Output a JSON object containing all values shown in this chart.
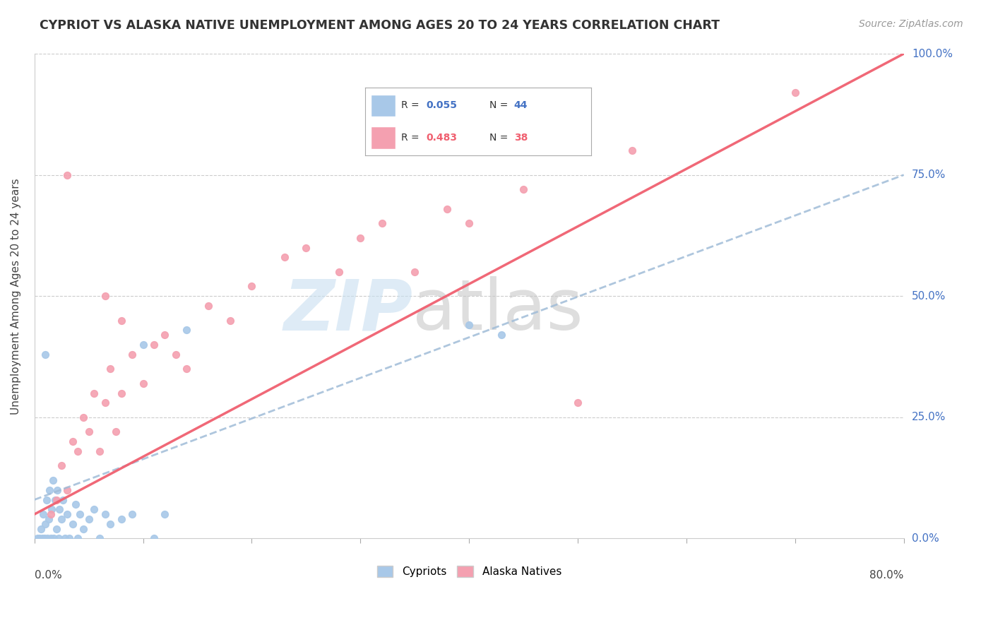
{
  "title": "CYPRIOT VS ALASKA NATIVE UNEMPLOYMENT AMONG AGES 20 TO 24 YEARS CORRELATION CHART",
  "source": "Source: ZipAtlas.com",
  "ylabel": "Unemployment Among Ages 20 to 24 years",
  "xlim": [
    0,
    80
  ],
  "ylim": [
    0,
    100
  ],
  "cypriot_color": "#a8c8e8",
  "alaska_color": "#f4a0b0",
  "cypriot_line_color": "#a0bcd8",
  "alaska_line_color": "#f06070",
  "watermark_zip_color": "#c8dff0",
  "watermark_atlas_color": "#c8c8c8",
  "cypriot_x": [
    0.3,
    0.5,
    0.6,
    0.7,
    0.8,
    0.9,
    1.0,
    1.1,
    1.2,
    1.3,
    1.4,
    1.5,
    1.6,
    1.7,
    1.8,
    1.9,
    2.0,
    2.1,
    2.2,
    2.3,
    2.5,
    2.6,
    2.8,
    3.0,
    3.2,
    3.5,
    3.8,
    4.0,
    4.2,
    4.5,
    5.0,
    5.5,
    6.0,
    6.5,
    7.0,
    8.0,
    9.0,
    10.0,
    11.0,
    12.0,
    14.0,
    40.0,
    43.0,
    1.0
  ],
  "cypriot_y": [
    0,
    0,
    2,
    0,
    5,
    0,
    3,
    8,
    0,
    4,
    10,
    0,
    6,
    12,
    0,
    8,
    2,
    10,
    0,
    6,
    4,
    8,
    0,
    5,
    0,
    3,
    7,
    0,
    5,
    2,
    4,
    6,
    0,
    5,
    3,
    4,
    5,
    40,
    0,
    5,
    43,
    44,
    42,
    38
  ],
  "alaska_x": [
    1.5,
    2.0,
    2.5,
    3.0,
    3.5,
    4.0,
    4.5,
    5.0,
    5.5,
    6.0,
    6.5,
    7.0,
    7.5,
    8.0,
    9.0,
    10.0,
    11.0,
    12.0,
    13.0,
    14.0,
    16.0,
    18.0,
    20.0,
    23.0,
    25.0,
    28.0,
    30.0,
    32.0,
    35.0,
    38.0,
    40.0,
    45.0,
    50.0,
    3.0,
    6.5,
    8.0,
    55.0,
    70.0
  ],
  "alaska_y": [
    5,
    8,
    15,
    10,
    20,
    18,
    25,
    22,
    30,
    18,
    28,
    35,
    22,
    30,
    38,
    32,
    40,
    42,
    38,
    35,
    48,
    45,
    52,
    58,
    60,
    55,
    62,
    65,
    55,
    68,
    65,
    72,
    28,
    75,
    50,
    45,
    80,
    92
  ],
  "alaska_line_x": [
    0,
    80
  ],
  "alaska_line_y": [
    5,
    100
  ],
  "cypriot_line_x": [
    0,
    80
  ],
  "cypriot_line_y": [
    8,
    75
  ]
}
